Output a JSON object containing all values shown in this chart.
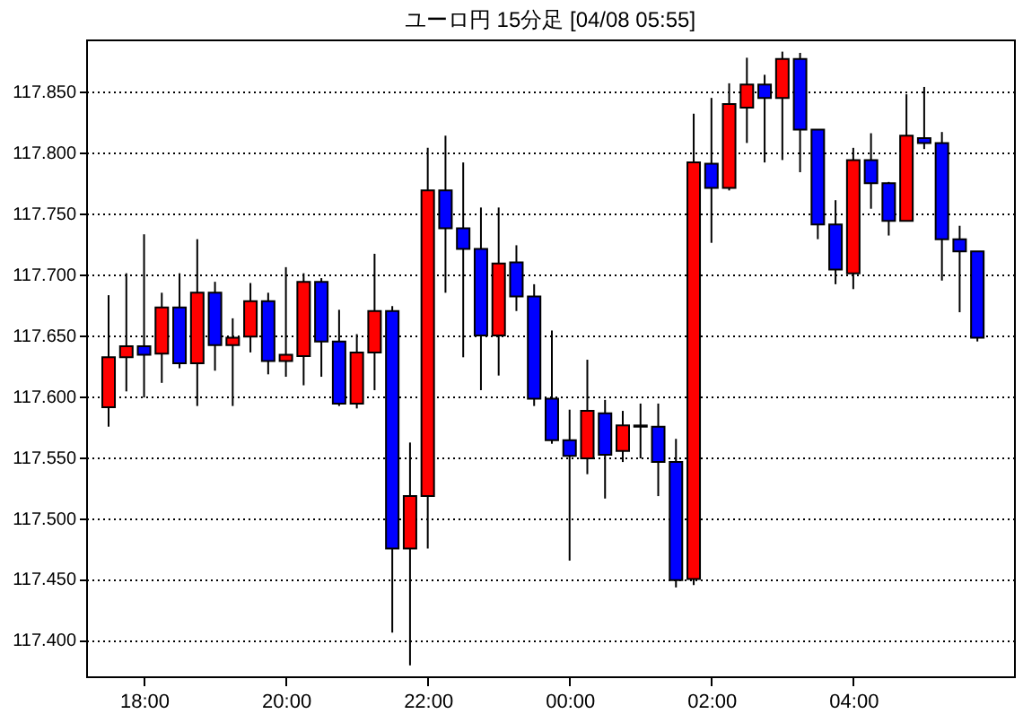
{
  "chart_data": {
    "type": "candlestick",
    "title": "ユーロ円 15分足 [04/08 05:55]",
    "x": [
      "--04-07T17:30",
      "--04-07T17:45",
      "--04-07T18:00",
      "--04-07T18:15",
      "--04-07T18:30",
      "--04-07T18:45",
      "--04-07T19:00",
      "--04-07T19:15",
      "--04-07T19:30",
      "--04-07T19:45",
      "--04-07T20:00",
      "--04-07T20:15",
      "--04-07T20:30",
      "--04-07T20:45",
      "--04-07T21:00",
      "--04-07T21:15",
      "--04-07T21:30",
      "--04-07T21:45",
      "--04-07T22:00",
      "--04-07T22:15",
      "--04-07T22:30",
      "--04-07T22:45",
      "--04-07T23:00",
      "--04-07T23:15",
      "--04-07T23:30",
      "--04-07T23:45",
      "--04-08T00:00",
      "--04-08T00:15",
      "--04-08T00:30",
      "--04-08T00:45",
      "--04-08T01:00",
      "--04-08T01:15",
      "--04-08T01:30",
      "--04-08T01:45",
      "--04-08T02:00",
      "--04-08T02:15",
      "--04-08T02:30",
      "--04-08T02:45",
      "--04-08T03:00",
      "--04-08T03:15",
      "--04-08T03:30",
      "--04-08T03:45",
      "--04-08T04:00",
      "--04-08T04:15",
      "--04-08T04:30",
      "--04-08T04:45",
      "--04-08T05:00",
      "--04-08T05:15",
      "--04-08T05:30",
      "--04-08T05:45"
    ],
    "ohlc": [
      [
        117.591,
        117.683,
        117.575,
        117.632
      ],
      [
        117.632,
        117.701,
        117.604,
        117.641
      ],
      [
        117.641,
        117.733,
        117.599,
        117.634
      ],
      [
        117.635,
        117.685,
        117.611,
        117.673
      ],
      [
        117.673,
        117.701,
        117.623,
        117.627
      ],
      [
        117.627,
        117.729,
        117.592,
        117.685
      ],
      [
        117.685,
        117.694,
        117.621,
        117.642
      ],
      [
        117.642,
        117.664,
        117.592,
        117.648
      ],
      [
        117.649,
        117.693,
        117.636,
        117.678
      ],
      [
        117.678,
        117.685,
        117.618,
        117.629
      ],
      [
        117.629,
        117.706,
        117.616,
        117.634
      ],
      [
        117.633,
        117.701,
        117.609,
        117.694
      ],
      [
        117.694,
        117.697,
        117.616,
        117.645
      ],
      [
        117.645,
        117.671,
        117.592,
        117.594
      ],
      [
        117.594,
        117.651,
        117.59,
        117.636
      ],
      [
        117.636,
        117.717,
        117.605,
        117.67
      ],
      [
        117.67,
        117.674,
        117.406,
        117.475
      ],
      [
        117.475,
        117.562,
        117.379,
        117.518
      ],
      [
        117.518,
        117.804,
        117.475,
        117.769
      ],
      [
        117.769,
        117.814,
        117.685,
        117.738
      ],
      [
        117.738,
        117.792,
        117.632,
        117.721
      ],
      [
        117.721,
        117.755,
        117.605,
        117.65
      ],
      [
        117.65,
        117.755,
        117.617,
        117.709
      ],
      [
        117.71,
        117.724,
        117.67,
        117.682
      ],
      [
        117.682,
        117.692,
        117.592,
        117.598
      ],
      [
        117.598,
        117.654,
        117.561,
        117.564
      ],
      [
        117.564,
        117.589,
        117.465,
        117.551
      ],
      [
        117.549,
        117.63,
        117.536,
        117.588
      ],
      [
        117.586,
        117.597,
        117.516,
        117.552
      ],
      [
        117.555,
        117.588,
        117.546,
        117.576
      ],
      [
        117.576,
        117.594,
        117.549,
        117.575
      ],
      [
        117.575,
        117.594,
        117.518,
        117.546
      ],
      [
        117.546,
        117.565,
        117.443,
        117.449
      ],
      [
        117.45,
        117.832,
        117.445,
        117.792
      ],
      [
        117.791,
        117.845,
        117.726,
        117.771
      ],
      [
        117.771,
        117.857,
        117.769,
        117.84
      ],
      [
        117.837,
        117.878,
        117.808,
        117.856
      ],
      [
        117.856,
        117.864,
        117.792,
        117.845
      ],
      [
        117.845,
        117.883,
        117.794,
        117.877
      ],
      [
        117.877,
        117.882,
        117.784,
        117.819
      ],
      [
        117.819,
        117.819,
        117.729,
        117.741
      ],
      [
        117.741,
        117.761,
        117.692,
        117.704
      ],
      [
        117.701,
        117.804,
        117.688,
        117.794
      ],
      [
        117.794,
        117.816,
        117.754,
        117.775
      ],
      [
        117.775,
        117.776,
        117.732,
        117.744
      ],
      [
        117.744,
        117.848,
        117.744,
        117.814
      ],
      [
        117.812,
        117.854,
        117.803,
        117.808
      ],
      [
        117.808,
        117.817,
        117.695,
        117.729
      ],
      [
        117.729,
        117.74,
        117.669,
        117.719
      ],
      [
        117.719,
        117.719,
        117.645,
        117.648
      ]
    ],
    "colors": [
      "#ff0000",
      "#ff0000",
      "#0000ff",
      "#ff0000",
      "#0000ff",
      "#ff0000",
      "#0000ff",
      "#ff0000",
      "#ff0000",
      "#0000ff",
      "#ff0000",
      "#ff0000",
      "#0000ff",
      "#0000ff",
      "#ff0000",
      "#ff0000",
      "#0000ff",
      "#ff0000",
      "#ff0000",
      "#0000ff",
      "#0000ff",
      "#0000ff",
      "#ff0000",
      "#0000ff",
      "#0000ff",
      "#0000ff",
      "#0000ff",
      "#ff0000",
      "#0000ff",
      "#ff0000",
      "#0000ff",
      "#0000ff",
      "#0000ff",
      "#ff0000",
      "#0000ff",
      "#ff0000",
      "#ff0000",
      "#0000ff",
      "#ff0000",
      "#0000ff",
      "#0000ff",
      "#0000ff",
      "#ff0000",
      "#0000ff",
      "#0000ff",
      "#ff0000",
      "#0000ff",
      "#0000ff",
      "#0000ff",
      "#0000ff"
    ],
    "xlim": [
      "--04-07T17:11",
      "--04-08T06:16"
    ],
    "xticks": [
      {
        "value": "--04-07T18:00",
        "label": "18:00"
      },
      {
        "value": "--04-07T20:00",
        "label": "20:00"
      },
      {
        "value": "--04-07T22:00",
        "label": "22:00"
      },
      {
        "value": "--04-08T00:00",
        "label": "00:00"
      },
      {
        "value": "--04-08T02:00",
        "label": "02:00"
      },
      {
        "value": "--04-08T04:00",
        "label": "04:00"
      }
    ],
    "ylim": [
      117.37,
      117.893
    ],
    "yticks": [
      {
        "value": 117.4,
        "label": "117.400"
      },
      {
        "value": 117.45,
        "label": "117.450"
      },
      {
        "value": 117.5,
        "label": "117.500"
      },
      {
        "value": 117.55,
        "label": "117.550"
      },
      {
        "value": 117.6,
        "label": "117.600"
      },
      {
        "value": 117.65,
        "label": "117.650"
      },
      {
        "value": 117.7,
        "label": "117.700"
      },
      {
        "value": 117.75,
        "label": "117.750"
      },
      {
        "value": 117.8,
        "label": "117.800"
      },
      {
        "value": 117.85,
        "label": "117.850"
      }
    ],
    "grid": "y"
  }
}
